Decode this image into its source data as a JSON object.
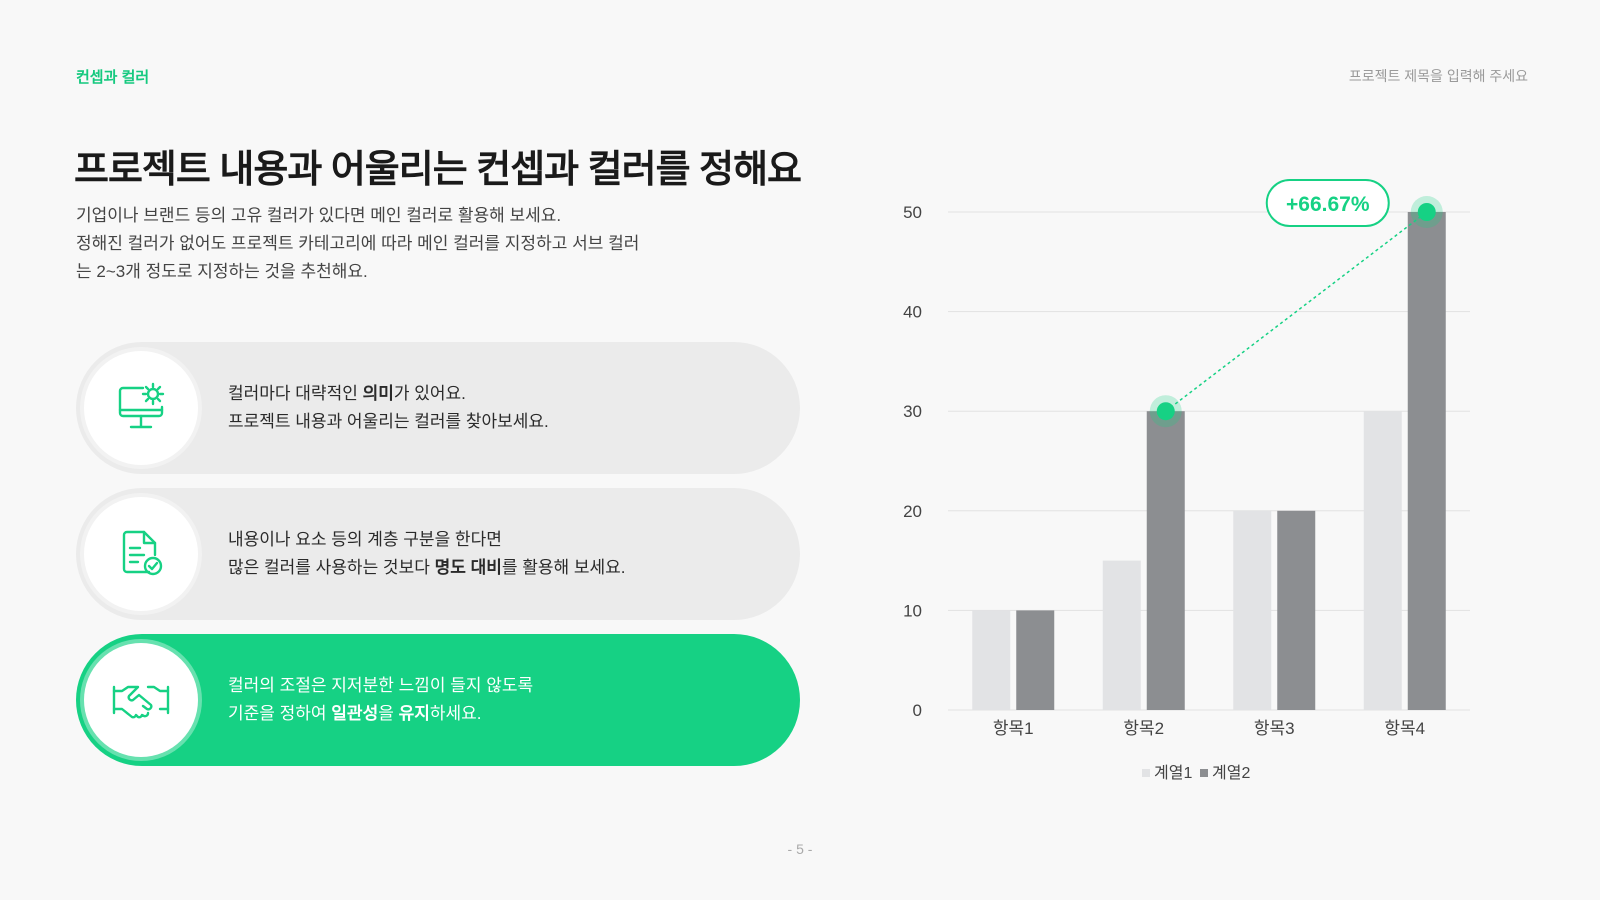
{
  "header": {
    "section_label": "컨셉과 컬러",
    "project_title": "프로젝트 제목을 입력해 주세요"
  },
  "main": {
    "title": "프로젝트 내용과 어울리는 컨셉과 컬러를 정해요",
    "description": [
      "기업이나 브랜드 등의 고유 컬러가 있다면 메인 컬러로 활용해 보세요.",
      "정해진 컬러가 없어도 프로젝트 카테고리에 따라 메인 컬러를 지정하고 서브 컬러",
      "는 2~3개 정도로 지정하는 것을 추천해요."
    ]
  },
  "cards": [
    {
      "icon": "monitor-gear-icon",
      "line1_pre": "컬러마다 대략적인 ",
      "line1_bold": "의미",
      "line1_post": "가 있어요.",
      "line2_pre": "프로젝트 내용과 어울리는 컬러를 찾아보세요.",
      "line2_bold": "",
      "line2_post": ""
    },
    {
      "icon": "document-check-icon",
      "line1_pre": "내용이나 요소 등의 계층 구분을 한다면",
      "line1_bold": "",
      "line1_post": "",
      "line2_pre": "많은 컬러를 사용하는 것보다 ",
      "line2_bold": "명도 대비",
      "line2_post": "를 활용해 보세요."
    },
    {
      "icon": "handshake-icon",
      "line1_pre": "컬러의 조절은 지저분한 느낌이 들지 않도록",
      "line1_bold": "",
      "line1_post": "",
      "line2_pre": "기준을 정하여 ",
      "line2_bold": "일관성",
      "line2_mid": "을 ",
      "line2_bold2": "유지",
      "line2_post": "하세요."
    }
  ],
  "colors": {
    "accent": "#16d184",
    "series1": "#e2e3e5",
    "series2": "#8c8e91",
    "card_bg": "#ebebeb"
  },
  "chart_data": {
    "type": "bar",
    "categories": [
      "항목1",
      "항목2",
      "항목3",
      "항목4"
    ],
    "series": [
      {
        "name": "계열1",
        "values": [
          10,
          15,
          20,
          30
        ]
      },
      {
        "name": "계열2",
        "values": [
          10,
          30,
          20,
          50
        ]
      }
    ],
    "ylim": [
      0,
      50
    ],
    "yticks": [
      0,
      10,
      20,
      30,
      40,
      50
    ],
    "grid": true,
    "legend": "bottom",
    "annotation": "+66.67%"
  },
  "footer": {
    "page_number": "- 5 -"
  }
}
